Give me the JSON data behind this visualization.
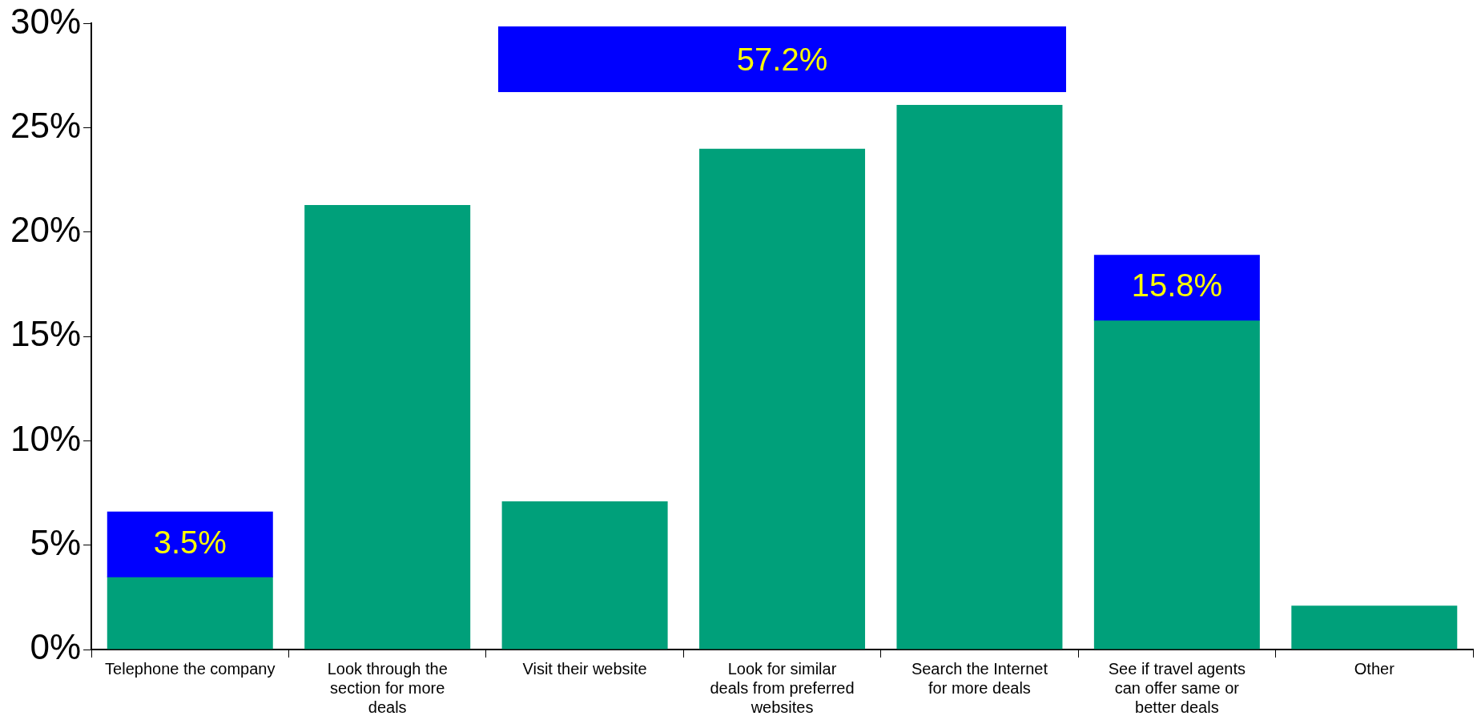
{
  "chart_data": {
    "type": "bar",
    "categories": [
      "Telephone the company",
      "Look through the section for more deals",
      "Visit their website",
      "Look for similar deals from preferred websites",
      "Search the Internet for more deals",
      "See if travel agents can offer same or better deals",
      "Other"
    ],
    "values": [
      3.5,
      21.3,
      7.1,
      24.0,
      26.1,
      15.8,
      2.1
    ],
    "color": "#00a07a",
    "ylim": [
      0,
      30
    ],
    "yticks": [
      {
        "value": 0,
        "label": "0%"
      },
      {
        "value": 5,
        "label": "5%"
      },
      {
        "value": 10,
        "label": "10%"
      },
      {
        "value": 15,
        "label": "15%"
      },
      {
        "value": 20,
        "label": "20%"
      },
      {
        "value": 25,
        "label": "25%"
      },
      {
        "value": 30,
        "label": "30%"
      }
    ],
    "grid": false,
    "legend": false,
    "annotations": [
      {
        "text": "3.5%",
        "x": "Telephone the company",
        "y": 3.5
      },
      "57.2%",
      {
        "text": "15.8%",
        "x": "See if travel agents can offer same or better deals",
        "y": 15.8
      }
    ]
  }
}
